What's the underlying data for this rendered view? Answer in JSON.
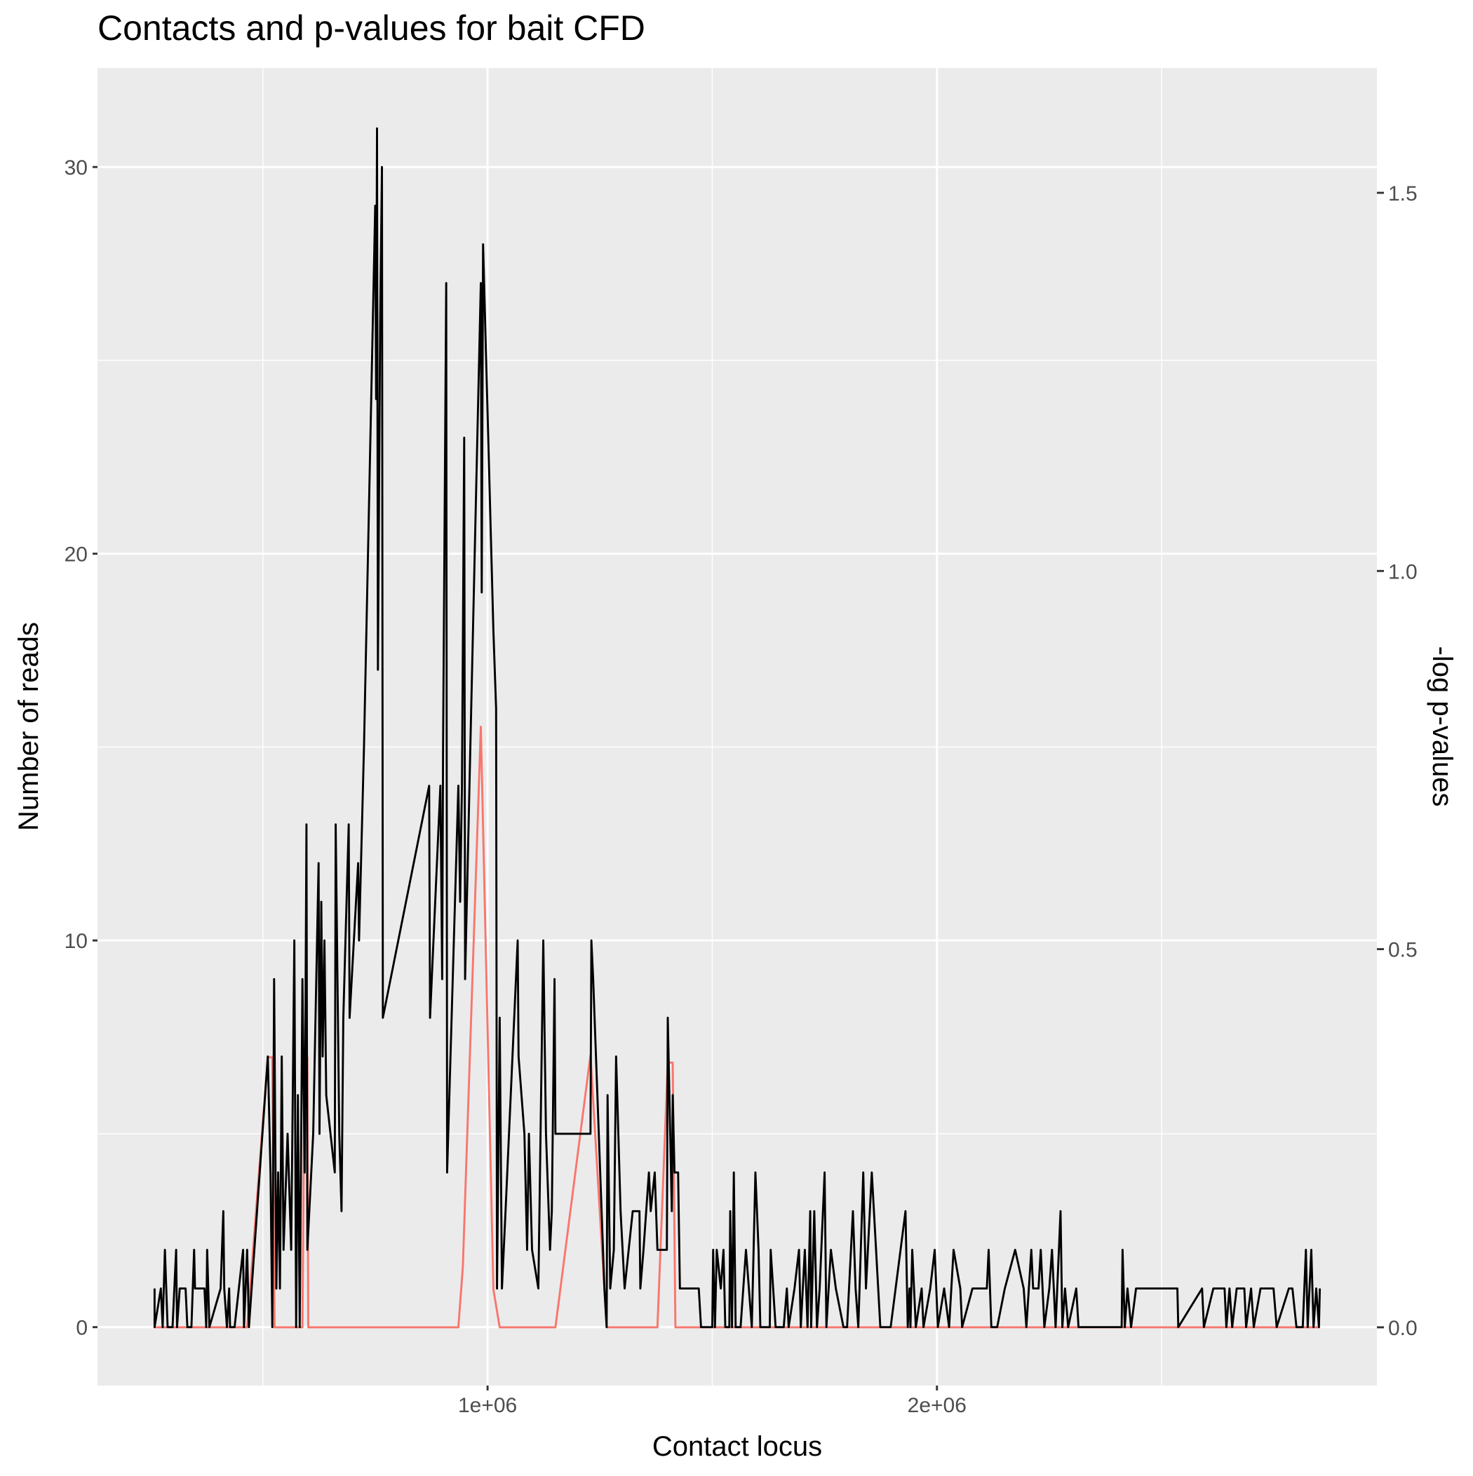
{
  "chart_data": {
    "type": "line",
    "title": "Contacts and p-values for bait CFD",
    "x_label": "Contact locus",
    "y_label": "Number of reads",
    "y2_label": "-log p-values",
    "xlim": [
      132000,
      2979000
    ],
    "xticks": [
      {
        "value": 1000000,
        "label": "1e+06"
      },
      {
        "value": 2000000,
        "label": "2e+06"
      }
    ],
    "x_minor_ticks": [
      500000,
      1500000,
      2500000
    ],
    "ylim": [
      -1.51,
      32.56
    ],
    "yticks": [
      0,
      10,
      20,
      30
    ],
    "y_minor_ticks": [
      5,
      15,
      25
    ],
    "y2lim": [
      -0.077,
      1.665
    ],
    "y2ticks": [
      {
        "value": 0,
        "label": "0.0"
      },
      0.5,
      {
        "value": 1,
        "label": "1.0"
      },
      1.5
    ],
    "grid": true,
    "series": [
      {
        "color": "#f8766d",
        "axis": "y2",
        "x": [
          259000,
          465000,
          511000,
          521000,
          526000,
          588000,
          593000,
          599000,
          601000,
          935000,
          945000,
          985000,
          1013000,
          1027000,
          1151000,
          1229000,
          1265000,
          1378000,
          1401000,
          1412000,
          1418000,
          2852000
        ],
        "values": [
          0,
          0,
          0.357,
          0.357,
          0,
          0,
          0.357,
          0.357,
          0,
          0,
          0.08,
          0.794,
          0.05,
          0,
          0,
          0.36,
          0,
          0,
          0.35,
          0.35,
          0,
          0
        ]
      },
      {
        "color": "#000000",
        "x": [
          259000,
          259000,
          273000,
          277000,
          282000,
          288000,
          299000,
          307000,
          309000,
          315000,
          328000,
          332000,
          341000,
          347000,
          349000,
          370000,
          374000,
          376000,
          381000,
          406000,
          412000,
          414000,
          420000,
          425000,
          427000,
          437000,
          456000,
          458000,
          465000,
          469000,
          511000,
          517000,
          521000,
          525000,
          530000,
          534000,
          538000,
          542000,
          546000,
          555000,
          563000,
          570000,
          574000,
          578000,
          582000,
          588000,
          593000,
          597000,
          599000,
          612000,
          624000,
          626000,
          630000,
          633000,
          637000,
          641000,
          660000,
          662000,
          670000,
          675000,
          679000,
          691000,
          693000,
          712000,
          714000,
          725000,
          750000,
          752000,
          754000,
          756000,
          761000,
          765000,
          767000,
          870000,
          872000,
          895000,
          899000,
          901000,
          908000,
          910000,
          935000,
          939000,
          943000,
          948000,
          950000,
          985000,
          987000,
          990000,
          1013000,
          1019000,
          1021000,
          1027000,
          1032000,
          1040000,
          1067000,
          1069000,
          1082000,
          1088000,
          1092000,
          1099000,
          1113000,
          1124000,
          1130000,
          1139000,
          1143000,
          1149000,
          1151000,
          1229000,
          1231000,
          1235000,
          1260000,
          1265000,
          1267000,
          1273000,
          1281000,
          1286000,
          1296000,
          1305000,
          1323000,
          1338000,
          1340000,
          1347000,
          1359000,
          1363000,
          1372000,
          1378000,
          1399000,
          1401000,
          1410000,
          1412000,
          1416000,
          1424000,
          1428000,
          1470000,
          1475000,
          1500000,
          1502000,
          1506000,
          1510000,
          1519000,
          1525000,
          1529000,
          1538000,
          1540000,
          1544000,
          1548000,
          1552000,
          1563000,
          1575000,
          1588000,
          1596000,
          1603000,
          1607000,
          1628000,
          1630000,
          1641000,
          1659000,
          1666000,
          1670000,
          1683000,
          1693000,
          1697000,
          1706000,
          1712000,
          1718000,
          1720000,
          1727000,
          1733000,
          1739000,
          1750000,
          1754000,
          1764000,
          1775000,
          1792000,
          1800000,
          1813000,
          1819000,
          1825000,
          1836000,
          1842000,
          1855000,
          1874000,
          1897000,
          1930000,
          1935000,
          1939000,
          1941000,
          1945000,
          1949000,
          1953000,
          1966000,
          1970000,
          1985000,
          1995000,
          2002000,
          2016000,
          2027000,
          2037000,
          2052000,
          2056000,
          2079000,
          2111000,
          2115000,
          2121000,
          2134000,
          2151000,
          2174000,
          2193000,
          2199000,
          2210000,
          2214000,
          2226000,
          2231000,
          2239000,
          2250000,
          2256000,
          2264000,
          2275000,
          2279000,
          2285000,
          2292000,
          2310000,
          2315000,
          2331000,
          2411000,
          2413000,
          2418000,
          2424000,
          2432000,
          2443000,
          2535000,
          2537000,
          2590000,
          2594000,
          2615000,
          2640000,
          2644000,
          2651000,
          2657000,
          2667000,
          2684000,
          2688000,
          2699000,
          2705000,
          2720000,
          2749000,
          2756000,
          2783000,
          2791000,
          2800000,
          2814000,
          2821000,
          2825000,
          2833000,
          2838000,
          2844000,
          2850000,
          2852000
        ],
        "values": [
          1,
          0,
          1,
          0,
          2,
          0,
          0,
          2,
          0,
          1,
          1,
          0,
          0,
          2,
          1,
          1,
          0,
          2,
          0,
          1,
          3,
          1,
          0,
          1,
          0,
          0,
          2,
          0,
          2,
          0,
          7,
          4,
          0,
          9,
          1,
          4,
          1,
          7,
          2,
          5,
          2,
          10,
          0,
          6,
          0,
          9,
          4,
          13,
          2,
          5,
          12,
          5,
          11,
          7,
          10,
          6,
          4,
          13,
          5,
          3,
          8,
          13,
          8,
          12,
          10,
          15,
          29,
          24,
          31,
          17,
          26,
          30,
          8,
          14,
          8,
          14,
          9,
          15,
          27,
          4,
          14,
          11,
          14,
          23,
          9,
          27,
          19,
          28,
          18,
          16,
          1,
          8,
          1,
          3,
          10,
          7,
          5,
          2,
          5,
          2,
          1,
          10,
          5,
          2,
          3,
          9,
          5,
          5,
          10,
          9,
          1,
          0,
          6,
          1,
          2,
          7,
          3,
          1,
          3,
          3,
          1,
          2,
          4,
          3,
          4,
          2,
          2,
          8,
          3,
          6,
          4,
          4,
          1,
          1,
          0,
          0,
          2,
          0,
          2,
          1,
          2,
          0,
          0,
          3,
          0,
          4,
          0,
          0,
          2,
          0,
          4,
          2,
          0,
          0,
          2,
          0,
          0,
          1,
          0,
          1,
          2,
          0,
          2,
          0,
          3,
          0,
          3,
          0,
          1,
          4,
          0,
          2,
          1,
          0,
          0,
          3,
          1,
          0,
          4,
          1,
          4,
          0,
          0,
          3,
          0,
          1,
          0,
          2,
          1,
          0,
          1,
          0,
          1,
          2,
          0,
          1,
          0,
          2,
          1,
          0,
          1,
          1,
          2,
          0,
          0,
          1,
          2,
          1,
          0,
          2,
          1,
          1,
          2,
          0,
          1,
          2,
          0,
          3,
          0,
          1,
          0,
          1,
          0,
          0,
          0,
          2,
          0,
          1,
          0,
          1,
          1,
          0,
          1,
          0,
          1,
          1,
          0,
          1,
          0,
          1,
          1,
          0,
          1,
          0,
          1,
          1,
          0,
          1,
          1,
          0,
          0,
          2,
          0,
          2,
          0,
          1,
          0,
          1
        ]
      }
    ]
  }
}
